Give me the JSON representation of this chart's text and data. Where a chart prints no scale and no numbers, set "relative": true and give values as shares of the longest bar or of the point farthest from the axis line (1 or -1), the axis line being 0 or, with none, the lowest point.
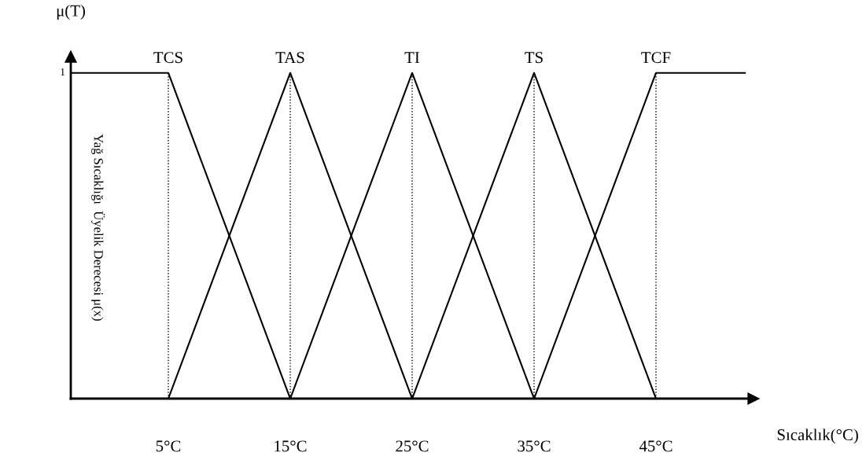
{
  "chart_data": {
    "type": "line",
    "xlabel": "Sıcaklık(°C)",
    "ylabel": "Yağ Sıcaklığı  Üyelik Derecesi μ(x)",
    "annotations": [
      "μ(T)",
      "1"
    ],
    "relative": true,
    "xlim": [
      -3,
      53
    ],
    "xticks": [
      {
        "value": 5,
        "label": "5°C"
      },
      {
        "value": 15,
        "label": "15°C"
      },
      {
        "value": 25,
        "label": "25°C"
      },
      {
        "value": 35,
        "label": "35°C"
      },
      {
        "value": 45,
        "label": "45°C"
      }
    ],
    "series": [
      {
        "name": "TCS",
        "color": "#000000",
        "x": [
          -3,
          5,
          15
        ],
        "values": [
          1,
          1,
          0
        ]
      },
      {
        "name": "TAS",
        "color": "#000000",
        "x": [
          5,
          15,
          25
        ],
        "values": [
          0,
          1,
          0
        ]
      },
      {
        "name": "TI",
        "color": "#000000",
        "x": [
          15,
          25,
          35
        ],
        "values": [
          0,
          1,
          0
        ]
      },
      {
        "name": "TS",
        "color": "#000000",
        "x": [
          25,
          35,
          45
        ],
        "values": [
          0,
          1,
          0
        ]
      },
      {
        "name": "TCF",
        "color": "#000000",
        "x": [
          35,
          45,
          52.3
        ],
        "values": [
          0,
          1,
          1
        ]
      }
    ],
    "ref_lines": [
      {
        "axis": "x",
        "value": 5,
        "line_style": "dotted"
      },
      {
        "axis": "x",
        "value": 15,
        "line_style": "dotted"
      },
      {
        "axis": "x",
        "value": 25,
        "line_style": "dotted"
      },
      {
        "axis": "x",
        "value": 35,
        "line_style": "dotted"
      },
      {
        "axis": "x",
        "value": 45,
        "line_style": "dotted"
      }
    ],
    "grid": false,
    "legend": false,
    "marker": "none",
    "line_style": "solid"
  }
}
